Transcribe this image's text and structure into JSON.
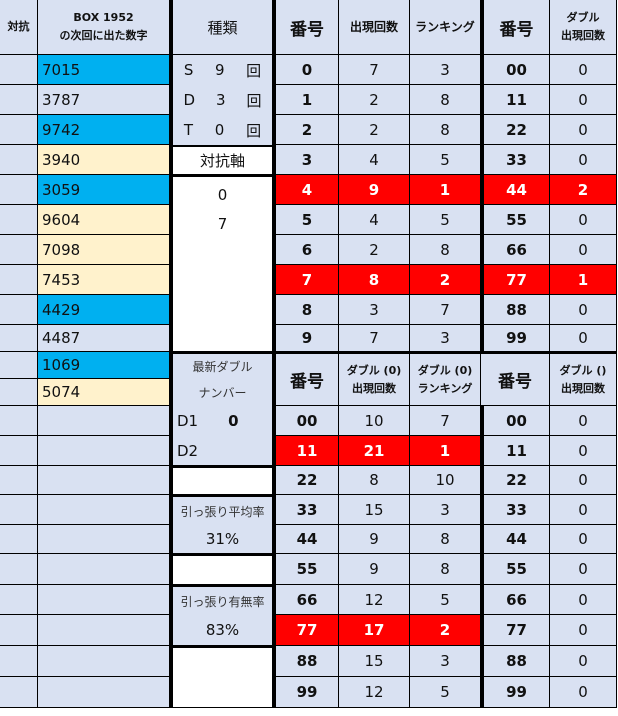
{
  "colors": {
    "base": "#D9E1F2",
    "blue": "#00B0F0",
    "cream": "#FFF2CC",
    "red": "#FF0000"
  },
  "left": {
    "header_taiko": "対抗",
    "header_box_line1": "BOX 1952",
    "header_box_line2": "の次回に出た数字",
    "numbers": [
      {
        "value": "7015",
        "color": "blue"
      },
      {
        "value": "3787",
        "color": "base"
      },
      {
        "value": "9742",
        "color": "blue"
      },
      {
        "value": "3940",
        "color": "cream"
      },
      {
        "value": "3059",
        "color": "blue"
      },
      {
        "value": "9604",
        "color": "cream"
      },
      {
        "value": "7098",
        "color": "cream"
      },
      {
        "value": "7453",
        "color": "cream"
      },
      {
        "value": "4429",
        "color": "blue"
      },
      {
        "value": "4487",
        "color": "base"
      },
      {
        "value": "1069",
        "color": "blue"
      },
      {
        "value": "5074",
        "color": "cream"
      }
    ]
  },
  "middle": {
    "header": "種類",
    "types": [
      [
        "S",
        "9",
        "回"
      ],
      [
        "D",
        "3",
        "回"
      ],
      [
        "T",
        "0",
        "回"
      ]
    ],
    "taikoujiku_label": "対抗軸",
    "taikoujiku_values": [
      "0",
      "7"
    ],
    "latest_double_line1": "最新ダブル",
    "latest_double_line2": "ナンバー",
    "d1_label": "D1",
    "d1_value": "0",
    "d2_label": "D2",
    "pull_avg_label": "引っ張り平均率",
    "pull_avg_value": "31%",
    "pull_rate_label": "引っ張り有無率",
    "pull_rate_value": "83%"
  },
  "top_table": {
    "headers": [
      "番号",
      "出現回数",
      "ランキング",
      "番号"
    ],
    "header5_line1": "ダブル",
    "header5_line2": "出現回数",
    "rows": [
      {
        "cells": [
          "0",
          "7",
          "3",
          "00",
          "0"
        ],
        "highlight": false
      },
      {
        "cells": [
          "1",
          "2",
          "8",
          "11",
          "0"
        ],
        "highlight": false
      },
      {
        "cells": [
          "2",
          "2",
          "8",
          "22",
          "0"
        ],
        "highlight": false
      },
      {
        "cells": [
          "3",
          "4",
          "5",
          "33",
          "0"
        ],
        "highlight": false
      },
      {
        "cells": [
          "4",
          "9",
          "1",
          "44",
          "2"
        ],
        "highlight": true
      },
      {
        "cells": [
          "5",
          "4",
          "5",
          "55",
          "0"
        ],
        "highlight": false
      },
      {
        "cells": [
          "6",
          "2",
          "8",
          "66",
          "0"
        ],
        "highlight": false
      },
      {
        "cells": [
          "7",
          "8",
          "2",
          "77",
          "1"
        ],
        "highlight": true
      },
      {
        "cells": [
          "8",
          "3",
          "7",
          "88",
          "0"
        ],
        "highlight": false
      },
      {
        "cells": [
          "9",
          "7",
          "3",
          "99",
          "0"
        ],
        "highlight": false
      }
    ]
  },
  "bottom_table": {
    "h1": "番号",
    "h2_line1": "ダブル (0)",
    "h2_line2": "出現回数",
    "h3_line1": "ダブル (0)",
    "h3_line2": "ランキング",
    "h4": "番号",
    "h5_line1": "ダブル ()",
    "h5_line2": "出現回数",
    "rows": [
      {
        "cells": [
          "00",
          "10",
          "7",
          "00",
          "0"
        ],
        "highlight": false
      },
      {
        "cells": [
          "11",
          "21",
          "1",
          "11",
          "0"
        ],
        "highlight": true
      },
      {
        "cells": [
          "22",
          "8",
          "10",
          "22",
          "0"
        ],
        "highlight": false
      },
      {
        "cells": [
          "33",
          "15",
          "3",
          "33",
          "0"
        ],
        "highlight": false
      },
      {
        "cells": [
          "44",
          "9",
          "8",
          "44",
          "0"
        ],
        "highlight": false
      },
      {
        "cells": [
          "55",
          "9",
          "8",
          "55",
          "0"
        ],
        "highlight": false
      },
      {
        "cells": [
          "66",
          "12",
          "5",
          "66",
          "0"
        ],
        "highlight": false
      },
      {
        "cells": [
          "77",
          "17",
          "2",
          "77",
          "0"
        ],
        "highlight": true
      },
      {
        "cells": [
          "88",
          "15",
          "3",
          "88",
          "0"
        ],
        "highlight": false
      },
      {
        "cells": [
          "99",
          "12",
          "5",
          "99",
          "0"
        ],
        "highlight": false
      }
    ]
  }
}
